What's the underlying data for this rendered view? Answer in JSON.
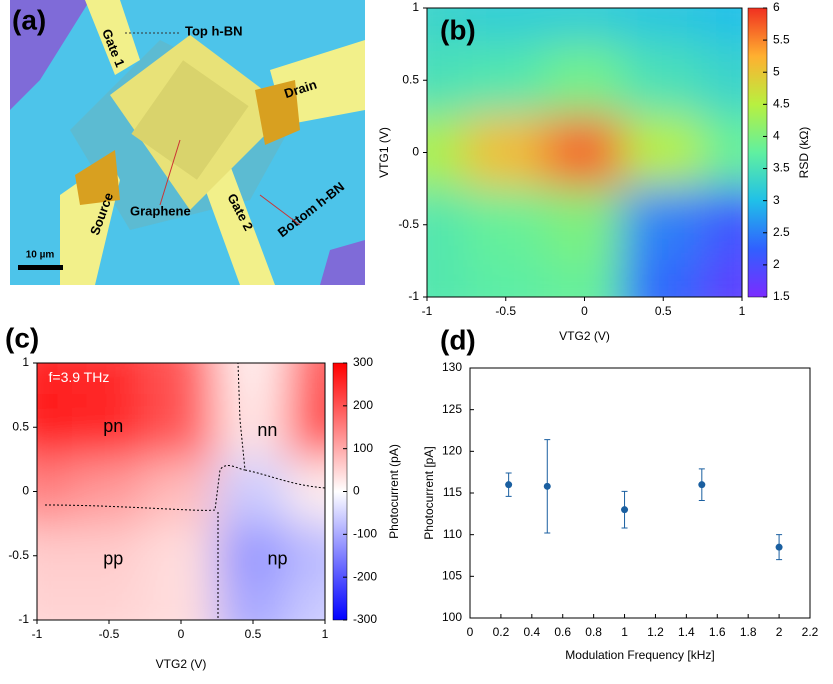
{
  "panel_a": {
    "label": "(a)",
    "annotations": [
      "Top h-BN",
      "Gate 1",
      "Drain",
      "Graphene",
      "Source",
      "Gate 2",
      "Bottom h-BN"
    ],
    "scale_bar": "10 µm"
  },
  "chart_data": [
    {
      "type": "heatmap",
      "label": "(b)",
      "xlabel": "VTG2 (V)",
      "ylabel": "VTG1 (V)",
      "x": [
        -1,
        -0.5,
        0,
        0.5,
        1
      ],
      "y": [
        1,
        0.5,
        0,
        -0.5,
        -1
      ],
      "z": [
        [
          3.3,
          3.2,
          3.2,
          3.1,
          3.0
        ],
        [
          3.5,
          3.6,
          3.9,
          3.5,
          3.3
        ],
        [
          4.4,
          5.1,
          5.7,
          4.5,
          3.8
        ],
        [
          3.6,
          3.8,
          4.0,
          2.5,
          2.1
        ],
        [
          3.6,
          3.7,
          3.8,
          2.3,
          1.8
        ]
      ],
      "xlim": [
        -1,
        1
      ],
      "xticks": [
        -1,
        -0.5,
        0,
        0.5,
        1
      ],
      "ylim": [
        -1,
        1
      ],
      "yticks": [
        -1,
        -0.5,
        0,
        0.5,
        1
      ],
      "colors": [
        "#7b2cff",
        "#3060ff",
        "#20c0e8",
        "#60f0a0",
        "#b8f040",
        "#ffb030",
        "#f03020"
      ],
      "colorbar": {
        "label": "RSD (kΩ)",
        "lim": [
          1.5,
          6
        ],
        "ticks": [
          1.5,
          2,
          2.5,
          3,
          3.5,
          4,
          4.5,
          5,
          5.5,
          6
        ]
      }
    },
    {
      "type": "heatmap",
      "label": "(c)",
      "xlabel": "VTG2 (V)",
      "annotations": [
        "f=3.9 THz",
        "pn",
        "nn",
        "pp",
        "np"
      ],
      "x": [
        -1,
        -0.5,
        0,
        0.5,
        1
      ],
      "y": [
        1,
        0.5,
        0,
        -0.5,
        -1
      ],
      "z": [
        [
          260,
          250,
          200,
          20,
          200
        ],
        [
          270,
          260,
          200,
          30,
          220
        ],
        [
          150,
          120,
          80,
          -60,
          20
        ],
        [
          60,
          60,
          40,
          -120,
          -80
        ],
        [
          50,
          50,
          40,
          -100,
          -60
        ]
      ],
      "xlim": [
        -1,
        1
      ],
      "xticks": [
        -1,
        -0.5,
        0,
        0.5,
        1
      ],
      "ylim": [
        -1,
        1
      ],
      "yticks": [
        -1,
        -0.5,
        0,
        0.5,
        1
      ],
      "colors": [
        "#0000ff",
        "#ffffff",
        "#ff0000"
      ],
      "colorbar": {
        "label": "Photocurrent (pA)",
        "lim": [
          -300,
          300
        ],
        "ticks": [
          -300,
          -200,
          -100,
          0,
          100,
          200,
          300
        ]
      }
    },
    {
      "type": "scatter",
      "label": "(d)",
      "xlabel": "Modulation Frequency [kHz]",
      "ylabel": "Photocurrent [pA]",
      "color": "#1a5fa0",
      "x": [
        0.25,
        0.5,
        1,
        1.5,
        2
      ],
      "y": [
        116,
        115.8,
        113,
        116,
        108.5
      ],
      "errors": [
        1.4,
        5.6,
        2.2,
        1.9,
        1.5
      ],
      "xlim": [
        0,
        2.2
      ],
      "xticks": [
        0,
        0.2,
        0.4,
        0.6,
        0.8,
        1,
        1.2,
        1.4,
        1.6,
        1.8,
        2,
        2.2
      ],
      "ylim": [
        100,
        130
      ],
      "yticks": [
        100,
        105,
        110,
        115,
        120,
        125,
        130
      ]
    }
  ]
}
